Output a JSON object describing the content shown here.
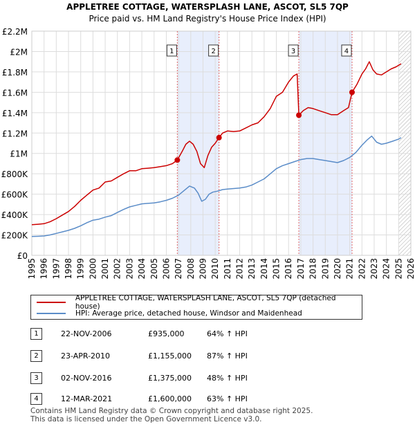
{
  "chart_data": {
    "type": "line",
    "title": "APPLETREE COTTAGE, WATERSPLASH LANE, ASCOT, SL5 7QP",
    "subtitle": "Price paid vs. HM Land Registry's House Price Index (HPI)",
    "xlim": [
      1995,
      2026
    ],
    "ylim": [
      0,
      2200000
    ],
    "x_ticks": [
      "1995",
      "1996",
      "1997",
      "1998",
      "1999",
      "2000",
      "2001",
      "2002",
      "2003",
      "2004",
      "2005",
      "2006",
      "2007",
      "2008",
      "2009",
      "2010",
      "2011",
      "2012",
      "2013",
      "2014",
      "2015",
      "2016",
      "2017",
      "2018",
      "2019",
      "2020",
      "2021",
      "2022",
      "2023",
      "2024",
      "2025",
      "2026"
    ],
    "y_ticks": [
      {
        "value": 0,
        "label": "£0"
      },
      {
        "value": 200000,
        "label": "£200K"
      },
      {
        "value": 400000,
        "label": "£400K"
      },
      {
        "value": 600000,
        "label": "£600K"
      },
      {
        "value": 800000,
        "label": "£800K"
      },
      {
        "value": 1000000,
        "label": "£1M"
      },
      {
        "value": 1200000,
        "label": "£1.2M"
      },
      {
        "value": 1400000,
        "label": "£1.4M"
      },
      {
        "value": 1600000,
        "label": "£1.6M"
      },
      {
        "value": 1800000,
        "label": "£1.8M"
      },
      {
        "value": 2000000,
        "label": "£2M"
      },
      {
        "value": 2200000,
        "label": "£2.2M"
      }
    ],
    "grid": true,
    "colors": {
      "property": "#cc0000",
      "hpi": "#5a8cc8",
      "shade": "#e8eefc",
      "marker_line": "#e06666"
    },
    "series": [
      {
        "name": "APPLETREE COTTAGE, WATERSPLASH LANE, ASCOT, SL5 7QP (detached house)",
        "color": "#cc0000",
        "x": [
          1995.0,
          1995.5,
          1996.0,
          1996.5,
          1997.0,
          1997.5,
          1998.0,
          1998.5,
          1999.0,
          1999.5,
          2000.0,
          2000.5,
          2001.0,
          2001.5,
          2002.0,
          2002.5,
          2003.0,
          2003.5,
          2004.0,
          2004.5,
          2005.0,
          2005.5,
          2006.0,
          2006.5,
          2006.9,
          2007.3,
          2007.6,
          2007.9,
          2008.2,
          2008.5,
          2008.8,
          2009.1,
          2009.4,
          2009.7,
          2010.0,
          2010.31,
          2010.6,
          2011.0,
          2011.5,
          2012.0,
          2012.5,
          2013.0,
          2013.5,
          2014.0,
          2014.5,
          2015.0,
          2015.5,
          2016.0,
          2016.4,
          2016.7,
          2016.84,
          2017.2,
          2017.6,
          2018.0,
          2018.5,
          2019.0,
          2019.5,
          2020.0,
          2020.5,
          2020.9,
          2021.19,
          2021.6,
          2022.0,
          2022.3,
          2022.6,
          2022.9,
          2023.2,
          2023.6,
          2024.0,
          2024.4,
          2024.8,
          2025.2
        ],
        "values": [
          300000,
          305000,
          310000,
          330000,
          360000,
          395000,
          430000,
          480000,
          540000,
          590000,
          640000,
          660000,
          720000,
          730000,
          765000,
          800000,
          830000,
          830000,
          850000,
          855000,
          860000,
          870000,
          880000,
          900000,
          935000,
          1020000,
          1090000,
          1120000,
          1090000,
          1020000,
          900000,
          860000,
          980000,
          1060000,
          1100000,
          1155000,
          1200000,
          1220000,
          1215000,
          1220000,
          1250000,
          1280000,
          1300000,
          1360000,
          1440000,
          1560000,
          1600000,
          1700000,
          1760000,
          1780000,
          1375000,
          1420000,
          1450000,
          1440000,
          1420000,
          1400000,
          1380000,
          1380000,
          1420000,
          1450000,
          1600000,
          1680000,
          1780000,
          1830000,
          1900000,
          1820000,
          1780000,
          1770000,
          1800000,
          1830000,
          1850000,
          1880000
        ]
      },
      {
        "name": "HPI: Average price, detached house, Windsor and Maidenhead",
        "color": "#5a8cc8",
        "x": [
          1995.0,
          1995.5,
          1996.0,
          1996.5,
          1997.0,
          1997.5,
          1998.0,
          1998.5,
          1999.0,
          1999.5,
          2000.0,
          2000.5,
          2001.0,
          2001.5,
          2002.0,
          2002.5,
          2003.0,
          2003.5,
          2004.0,
          2004.5,
          2005.0,
          2005.5,
          2006.0,
          2006.5,
          2007.0,
          2007.5,
          2007.9,
          2008.3,
          2008.6,
          2008.9,
          2009.2,
          2009.5,
          2009.8,
          2010.2,
          2010.6,
          2011.0,
          2011.5,
          2012.0,
          2012.5,
          2013.0,
          2013.5,
          2014.0,
          2014.5,
          2015.0,
          2015.5,
          2016.0,
          2016.5,
          2017.0,
          2017.5,
          2018.0,
          2018.5,
          2019.0,
          2019.5,
          2020.0,
          2020.5,
          2021.0,
          2021.5,
          2022.0,
          2022.4,
          2022.8,
          2023.2,
          2023.6,
          2024.0,
          2024.5,
          2025.0,
          2025.2
        ],
        "values": [
          185000,
          187000,
          190000,
          200000,
          215000,
          230000,
          245000,
          265000,
          290000,
          320000,
          345000,
          355000,
          375000,
          390000,
          420000,
          450000,
          475000,
          490000,
          505000,
          510000,
          515000,
          525000,
          540000,
          560000,
          590000,
          640000,
          680000,
          660000,
          610000,
          530000,
          550000,
          600000,
          620000,
          630000,
          645000,
          650000,
          655000,
          660000,
          670000,
          690000,
          720000,
          750000,
          800000,
          850000,
          880000,
          900000,
          920000,
          940000,
          950000,
          950000,
          940000,
          930000,
          920000,
          910000,
          930000,
          960000,
          1010000,
          1080000,
          1130000,
          1170000,
          1110000,
          1090000,
          1100000,
          1120000,
          1140000,
          1155000
        ]
      }
    ],
    "markers": [
      {
        "label": "1",
        "x": 2006.9,
        "value": 935000
      },
      {
        "label": "2",
        "x": 2010.31,
        "value": 1155000
      },
      {
        "label": "3",
        "x": 2016.84,
        "value": 1375000
      },
      {
        "label": "4",
        "x": 2021.19,
        "value": 1600000
      }
    ],
    "shaded_ranges": [
      [
        2006.9,
        2010.31
      ],
      [
        2016.84,
        2021.19
      ]
    ],
    "hatched_from": 2025.0
  },
  "legend": {
    "property": "APPLETREE COTTAGE, WATERSPLASH LANE, ASCOT, SL5 7QP (detached house)",
    "hpi": "HPI: Average price, detached house, Windsor and Maidenhead"
  },
  "transactions": [
    {
      "label": "1",
      "date": "22-NOV-2006",
      "price": "£935,000",
      "hpi": "64% ↑ HPI"
    },
    {
      "label": "2",
      "date": "23-APR-2010",
      "price": "£1,155,000",
      "hpi": "87% ↑ HPI"
    },
    {
      "label": "3",
      "date": "02-NOV-2016",
      "price": "£1,375,000",
      "hpi": "48% ↑ HPI"
    },
    {
      "label": "4",
      "date": "12-MAR-2021",
      "price": "£1,600,000",
      "hpi": "63% ↑ HPI"
    }
  ],
  "footer": {
    "line1": "Contains HM Land Registry data © Crown copyright and database right 2025.",
    "line2": "This data is licensed under the Open Government Licence v3.0."
  }
}
